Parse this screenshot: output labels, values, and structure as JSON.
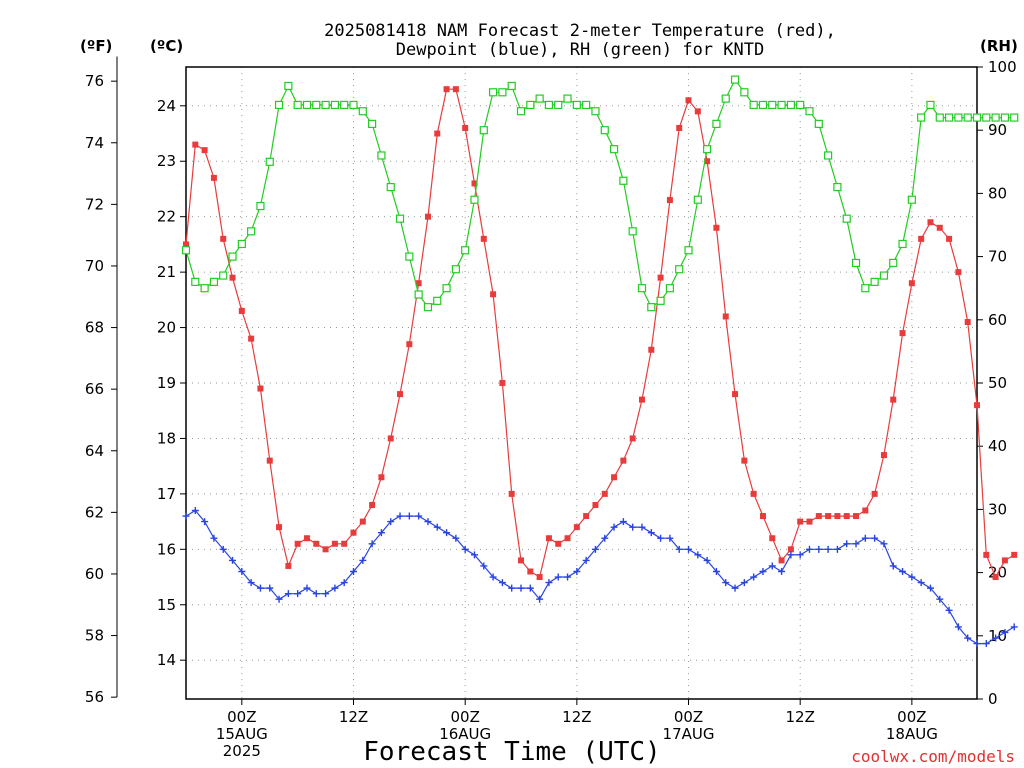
{
  "chart_data": {
    "type": "line",
    "title_line1": "2025081418 NAM Forecast 2-meter Temperature (red),",
    "title_line2": "Dewpoint (blue), RH (green) for KNTD",
    "xlabel": "Forecast Time (UTC)",
    "watermark": "coolwx.com/models",
    "units": {
      "fahrenheit": "(ºF)",
      "celsius": "(ºC)",
      "rh": "(RH)"
    },
    "x_range_hours": [
      0,
      85
    ],
    "x_ticks": [
      {
        "hour": 6,
        "lines": [
          "00Z",
          "15AUG",
          "2025"
        ]
      },
      {
        "hour": 18,
        "lines": [
          "12Z"
        ]
      },
      {
        "hour": 30,
        "lines": [
          "00Z",
          "16AUG"
        ]
      },
      {
        "hour": 42,
        "lines": [
          "12Z"
        ]
      },
      {
        "hour": 54,
        "lines": [
          "00Z",
          "17AUG"
        ]
      },
      {
        "hour": 66,
        "lines": [
          "12Z"
        ]
      },
      {
        "hour": 78,
        "lines": [
          "00Z",
          "18AUG"
        ]
      }
    ],
    "celsius_range": [
      13.3,
      24.7
    ],
    "celsius_ticks": [
      "14",
      "15",
      "16",
      "17",
      "18",
      "19",
      "20",
      "21",
      "22",
      "23",
      "24"
    ],
    "fahrenheit_ticks": [
      "56",
      "58",
      "60",
      "62",
      "64",
      "66",
      "68",
      "70",
      "72",
      "74",
      "76"
    ],
    "rh_range": [
      0,
      100
    ],
    "rh_ticks": [
      "0",
      "10",
      "20",
      "30",
      "40",
      "50",
      "60",
      "70",
      "80",
      "90",
      "100"
    ],
    "colors": {
      "temperature": "#e83c3c",
      "dewpoint": "#2a44e0",
      "rh": "#22cc22"
    },
    "series": [
      {
        "name": "Temperature",
        "unit": "C",
        "values": [
          21.5,
          23.3,
          23.2,
          22.7,
          21.6,
          20.9,
          20.3,
          19.8,
          18.9,
          17.6,
          16.4,
          15.7,
          16.1,
          16.2,
          16.1,
          16.0,
          16.1,
          16.1,
          16.3,
          16.5,
          16.8,
          17.3,
          18.0,
          18.8,
          19.7,
          20.8,
          22.0,
          23.5,
          24.3,
          24.3,
          23.6,
          22.6,
          21.6,
          20.6,
          19.0,
          17.0,
          15.8,
          15.6,
          15.5,
          16.2,
          16.1,
          16.2,
          16.4,
          16.6,
          16.8,
          17.0,
          17.3,
          17.6,
          18.0,
          18.7,
          19.6,
          20.9,
          22.3,
          23.6,
          24.1,
          23.9,
          23.0,
          21.8,
          20.2,
          18.8,
          17.6,
          17.0,
          16.6,
          16.2,
          15.8,
          16.0,
          16.5,
          16.5,
          16.6,
          16.6,
          16.6,
          16.6,
          16.6,
          16.7,
          17.0,
          17.7,
          18.7,
          19.9,
          20.8,
          21.6,
          21.9,
          21.8,
          21.6,
          21.0,
          20.1,
          18.6,
          15.9,
          15.5,
          15.8,
          15.9
        ]
      },
      {
        "name": "Dewpoint",
        "unit": "C",
        "values": [
          16.6,
          16.7,
          16.5,
          16.2,
          16.0,
          15.8,
          15.6,
          15.4,
          15.3,
          15.3,
          15.1,
          15.2,
          15.2,
          15.3,
          15.2,
          15.2,
          15.3,
          15.4,
          15.6,
          15.8,
          16.1,
          16.3,
          16.5,
          16.6,
          16.6,
          16.6,
          16.5,
          16.4,
          16.3,
          16.2,
          16.0,
          15.9,
          15.7,
          15.5,
          15.4,
          15.3,
          15.3,
          15.3,
          15.1,
          15.4,
          15.5,
          15.5,
          15.6,
          15.8,
          16.0,
          16.2,
          16.4,
          16.5,
          16.4,
          16.4,
          16.3,
          16.2,
          16.2,
          16.0,
          16.0,
          15.9,
          15.8,
          15.6,
          15.4,
          15.3,
          15.4,
          15.5,
          15.6,
          15.7,
          15.6,
          15.9,
          15.9,
          16.0,
          16.0,
          16.0,
          16.0,
          16.1,
          16.1,
          16.2,
          16.2,
          16.1,
          15.7,
          15.6,
          15.5,
          15.4,
          15.3,
          15.1,
          14.9,
          14.6,
          14.4,
          14.3,
          14.3,
          14.4,
          14.5,
          14.6
        ]
      },
      {
        "name": "RH",
        "unit": "%",
        "values": [
          71,
          66,
          65,
          66,
          67,
          70,
          72,
          74,
          78,
          85,
          94,
          97,
          94,
          94,
          94,
          94,
          94,
          94,
          94,
          93,
          91,
          86,
          81,
          76,
          70,
          64,
          62,
          63,
          65,
          68,
          71,
          79,
          90,
          96,
          96,
          97,
          93,
          94,
          95,
          94,
          94,
          95,
          94,
          94,
          93,
          90,
          87,
          82,
          74,
          65,
          62,
          63,
          65,
          68,
          71,
          79,
          87,
          91,
          95,
          98,
          96,
          94,
          94,
          94,
          94,
          94,
          94,
          93,
          91,
          86,
          81,
          76,
          69,
          65,
          66,
          67,
          69,
          72,
          79,
          92,
          94,
          92,
          92,
          92,
          92,
          92,
          92,
          92,
          92,
          92
        ]
      }
    ]
  }
}
